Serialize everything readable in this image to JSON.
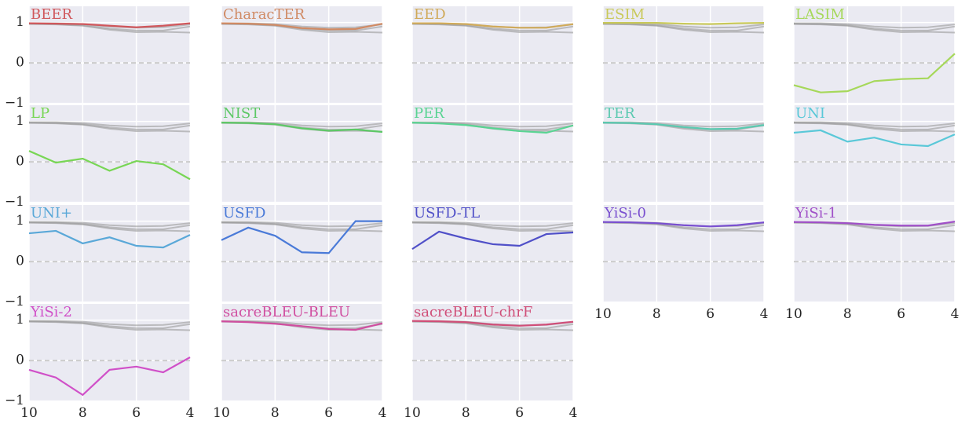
{
  "chart_data": [
    {
      "type": "line",
      "title": "BEER",
      "color": "#d0575c",
      "x": [
        10,
        9,
        8,
        7,
        6,
        5,
        4
      ],
      "values": [
        0.98,
        0.97,
        0.96,
        0.92,
        0.88,
        0.92,
        0.98
      ],
      "xlim": [
        10,
        4
      ],
      "ylim": [
        -1,
        1.4
      ],
      "xticks": [
        10,
        8,
        6,
        4
      ],
      "yticks": [
        {
          "value": -1,
          "label": "−1"
        },
        0,
        1
      ],
      "grid": true,
      "zero_line": true,
      "show_x_tick_labels": false,
      "show_y_tick_labels": true
    },
    {
      "type": "line",
      "title": "CharacTER",
      "color": "#d08a64",
      "x": [
        10,
        9,
        8,
        7,
        6,
        5,
        4
      ],
      "values": [
        0.98,
        0.97,
        0.94,
        0.86,
        0.83,
        0.84,
        0.97
      ],
      "xlim": [
        10,
        4
      ],
      "ylim": [
        -1,
        1.4
      ],
      "xticks": [
        10,
        8,
        6,
        4
      ],
      "yticks": [
        {
          "value": -1,
          "label": "−1"
        },
        0,
        1
      ],
      "grid": true,
      "zero_line": true,
      "show_x_tick_labels": false,
      "show_y_tick_labels": false
    },
    {
      "type": "line",
      "title": "EED",
      "color": "#d0aa5a",
      "x": [
        10,
        9,
        8,
        7,
        6,
        5,
        4
      ],
      "values": [
        0.98,
        0.98,
        0.96,
        0.9,
        0.87,
        0.87,
        0.96
      ],
      "xlim": [
        10,
        4
      ],
      "ylim": [
        -1,
        1.4
      ],
      "xticks": [
        10,
        8,
        6,
        4
      ],
      "yticks": [
        {
          "value": -1,
          "label": "−1"
        },
        0,
        1
      ],
      "grid": true,
      "zero_line": true,
      "show_x_tick_labels": false,
      "show_y_tick_labels": false
    },
    {
      "type": "line",
      "title": "ESIM",
      "color": "#c9c95a",
      "x": [
        10,
        9,
        8,
        7,
        6,
        5,
        4
      ],
      "values": [
        0.99,
        0.99,
        0.99,
        0.97,
        0.96,
        0.98,
        0.99
      ],
      "xlim": [
        10,
        4
      ],
      "ylim": [
        -1,
        1.4
      ],
      "xticks": [
        10,
        8,
        6,
        4
      ],
      "yticks": [
        {
          "value": -1,
          "label": "−1"
        },
        0,
        1
      ],
      "grid": true,
      "zero_line": true,
      "show_x_tick_labels": false,
      "show_y_tick_labels": false
    },
    {
      "type": "line",
      "title": "LASIM",
      "color": "#a6d85a",
      "x": [
        10,
        9,
        8,
        7,
        6,
        5,
        4
      ],
      "values": [
        -0.55,
        -0.73,
        -0.7,
        -0.45,
        -0.4,
        -0.38,
        0.23
      ],
      "xlim": [
        10,
        4
      ],
      "ylim": [
        -1,
        1.4
      ],
      "xticks": [
        10,
        8,
        6,
        4
      ],
      "yticks": [
        {
          "value": -1,
          "label": "−1"
        },
        0,
        1
      ],
      "grid": true,
      "zero_line": true,
      "show_x_tick_labels": false,
      "show_y_tick_labels": false
    },
    {
      "type": "line",
      "title": "LP",
      "color": "#78d655",
      "x": [
        10,
        9,
        8,
        7,
        6,
        5,
        4
      ],
      "values": [
        0.27,
        -0.02,
        0.08,
        -0.22,
        0.02,
        -0.06,
        -0.43
      ],
      "xlim": [
        10,
        4
      ],
      "ylim": [
        -1,
        1.4
      ],
      "xticks": [
        10,
        8,
        6,
        4
      ],
      "yticks": [
        {
          "value": -1,
          "label": "−1"
        },
        0,
        1
      ],
      "grid": true,
      "zero_line": true,
      "show_x_tick_labels": false,
      "show_y_tick_labels": true
    },
    {
      "type": "line",
      "title": "NIST",
      "color": "#5dc866",
      "x": [
        10,
        9,
        8,
        7,
        6,
        5,
        4
      ],
      "values": [
        0.97,
        0.96,
        0.93,
        0.83,
        0.77,
        0.8,
        0.74
      ],
      "xlim": [
        10,
        4
      ],
      "ylim": [
        -1,
        1.4
      ],
      "xticks": [
        10,
        8,
        6,
        4
      ],
      "yticks": [
        {
          "value": -1,
          "label": "−1"
        },
        0,
        1
      ],
      "grid": true,
      "zero_line": true,
      "show_x_tick_labels": false,
      "show_y_tick_labels": false
    },
    {
      "type": "line",
      "title": "PER",
      "color": "#5ad493",
      "x": [
        10,
        9,
        8,
        7,
        6,
        5,
        4
      ],
      "values": [
        0.97,
        0.95,
        0.91,
        0.83,
        0.76,
        0.72,
        0.9
      ],
      "xlim": [
        10,
        4
      ],
      "ylim": [
        -1,
        1.4
      ],
      "xticks": [
        10,
        8,
        6,
        4
      ],
      "yticks": [
        {
          "value": -1,
          "label": "−1"
        },
        0,
        1
      ],
      "grid": true,
      "zero_line": true,
      "show_x_tick_labels": false,
      "show_y_tick_labels": false
    },
    {
      "type": "line",
      "title": "TER",
      "color": "#5ac9b0",
      "x": [
        10,
        9,
        8,
        7,
        6,
        5,
        4
      ],
      "values": [
        0.97,
        0.96,
        0.93,
        0.86,
        0.81,
        0.82,
        0.91
      ],
      "xlim": [
        10,
        4
      ],
      "ylim": [
        -1,
        1.4
      ],
      "xticks": [
        10,
        8,
        6,
        4
      ],
      "yticks": [
        {
          "value": -1,
          "label": "−1"
        },
        0,
        1
      ],
      "grid": true,
      "zero_line": true,
      "show_x_tick_labels": false,
      "show_y_tick_labels": false
    },
    {
      "type": "line",
      "title": "UNI",
      "color": "#5ac8d8",
      "x": [
        10,
        9,
        8,
        7,
        6,
        5,
        4
      ],
      "values": [
        0.72,
        0.78,
        0.5,
        0.6,
        0.43,
        0.39,
        0.68
      ],
      "xlim": [
        10,
        4
      ],
      "ylim": [
        -1,
        1.4
      ],
      "xticks": [
        10,
        8,
        6,
        4
      ],
      "yticks": [
        {
          "value": -1,
          "label": "−1"
        },
        0,
        1
      ],
      "grid": true,
      "zero_line": true,
      "show_x_tick_labels": false,
      "show_y_tick_labels": false
    },
    {
      "type": "line",
      "title": "UNI+",
      "color": "#5aa8d8",
      "x": [
        10,
        9,
        8,
        7,
        6,
        5,
        4
      ],
      "values": [
        0.7,
        0.76,
        0.45,
        0.6,
        0.39,
        0.35,
        0.66
      ],
      "xlim": [
        10,
        4
      ],
      "ylim": [
        -1,
        1.4
      ],
      "xticks": [
        10,
        8,
        6,
        4
      ],
      "yticks": [
        {
          "value": -1,
          "label": "−1"
        },
        0,
        1
      ],
      "grid": true,
      "zero_line": true,
      "show_x_tick_labels": false,
      "show_y_tick_labels": true
    },
    {
      "type": "line",
      "title": "USFD",
      "color": "#4a7ad8",
      "x": [
        10,
        9,
        8,
        7,
        6,
        5,
        4
      ],
      "values": [
        0.53,
        0.84,
        0.64,
        0.23,
        0.21,
        1.0,
        1.0
      ],
      "xlim": [
        10,
        4
      ],
      "ylim": [
        -1,
        1.4
      ],
      "xticks": [
        10,
        8,
        6,
        4
      ],
      "yticks": [
        {
          "value": -1,
          "label": "−1"
        },
        0,
        1
      ],
      "grid": true,
      "zero_line": true,
      "show_x_tick_labels": false,
      "show_y_tick_labels": false
    },
    {
      "type": "line",
      "title": "USFD-TL",
      "color": "#5050c8",
      "x": [
        10,
        9,
        8,
        7,
        6,
        5,
        4
      ],
      "values": [
        0.31,
        0.74,
        0.57,
        0.43,
        0.39,
        0.68,
        0.72
      ],
      "xlim": [
        10,
        4
      ],
      "ylim": [
        -1,
        1.4
      ],
      "xticks": [
        10,
        8,
        6,
        4
      ],
      "yticks": [
        {
          "value": -1,
          "label": "−1"
        },
        0,
        1
      ],
      "grid": true,
      "zero_line": true,
      "show_x_tick_labels": false,
      "show_y_tick_labels": false
    },
    {
      "type": "line",
      "title": "YiSi-0",
      "color": "#7a50d0",
      "x": [
        10,
        9,
        8,
        7,
        6,
        5,
        4
      ],
      "values": [
        0.98,
        0.97,
        0.95,
        0.9,
        0.87,
        0.9,
        0.97
      ],
      "xlim": [
        10,
        4
      ],
      "ylim": [
        -1,
        1.4
      ],
      "xticks": [
        10,
        8,
        6,
        4
      ],
      "yticks": [
        {
          "value": -1,
          "label": "−1"
        },
        0,
        1
      ],
      "grid": true,
      "zero_line": true,
      "show_x_tick_labels": true,
      "show_y_tick_labels": false
    },
    {
      "type": "line",
      "title": "YiSi-1",
      "color": "#a050c8",
      "x": [
        10,
        9,
        8,
        7,
        6,
        5,
        4
      ],
      "values": [
        0.98,
        0.97,
        0.95,
        0.91,
        0.89,
        0.89,
        0.99
      ],
      "xlim": [
        10,
        4
      ],
      "ylim": [
        -1,
        1.4
      ],
      "xticks": [
        10,
        8,
        6,
        4
      ],
      "yticks": [
        {
          "value": -1,
          "label": "−1"
        },
        0,
        1
      ],
      "grid": true,
      "zero_line": true,
      "show_x_tick_labels": true,
      "show_y_tick_labels": false
    },
    {
      "type": "line",
      "title": "YiSi-2",
      "color": "#d050c8",
      "x": [
        10,
        9,
        8,
        7,
        6,
        5,
        4
      ],
      "values": [
        -0.23,
        -0.42,
        -0.85,
        -0.23,
        -0.15,
        -0.29,
        0.08
      ],
      "xlim": [
        10,
        4
      ],
      "ylim": [
        -1,
        1.4
      ],
      "xticks": [
        10,
        8,
        6,
        4
      ],
      "yticks": [
        {
          "value": -1,
          "label": "−1"
        },
        0,
        1
      ],
      "grid": true,
      "zero_line": true,
      "show_x_tick_labels": true,
      "show_y_tick_labels": true
    },
    {
      "type": "line",
      "title": "sacreBLEU-BLEU",
      "color": "#d04ea0",
      "x": [
        10,
        9,
        8,
        7,
        6,
        5,
        4
      ],
      "values": [
        0.97,
        0.95,
        0.91,
        0.85,
        0.78,
        0.76,
        0.92
      ],
      "xlim": [
        10,
        4
      ],
      "ylim": [
        -1,
        1.4
      ],
      "xticks": [
        10,
        8,
        6,
        4
      ],
      "yticks": [
        {
          "value": -1,
          "label": "−1"
        },
        0,
        1
      ],
      "grid": true,
      "zero_line": true,
      "show_x_tick_labels": true,
      "show_y_tick_labels": false
    },
    {
      "type": "line",
      "title": "sacreBLEU-chrF",
      "color": "#d04e78",
      "x": [
        10,
        9,
        8,
        7,
        6,
        5,
        4
      ],
      "values": [
        0.98,
        0.97,
        0.95,
        0.89,
        0.86,
        0.89,
        0.96
      ],
      "xlim": [
        10,
        4
      ],
      "ylim": [
        -1,
        1.4
      ],
      "xticks": [
        10,
        8,
        6,
        4
      ],
      "yticks": [
        {
          "value": -1,
          "label": "−1"
        },
        0,
        1
      ],
      "grid": true,
      "zero_line": true,
      "show_x_tick_labels": true,
      "show_y_tick_labels": false
    }
  ],
  "background_series": [
    {
      "color": "#9a9a9a",
      "values": [
        0.98,
        0.98,
        0.96,
        0.9,
        0.87,
        0.88,
        0.95
      ]
    },
    {
      "color": "#9a9a9a",
      "values": [
        0.97,
        0.96,
        0.93,
        0.85,
        0.8,
        0.8,
        0.9
      ]
    },
    {
      "color": "#9a9a9a",
      "values": [
        0.96,
        0.95,
        0.92,
        0.82,
        0.76,
        0.77,
        0.75
      ]
    }
  ]
}
